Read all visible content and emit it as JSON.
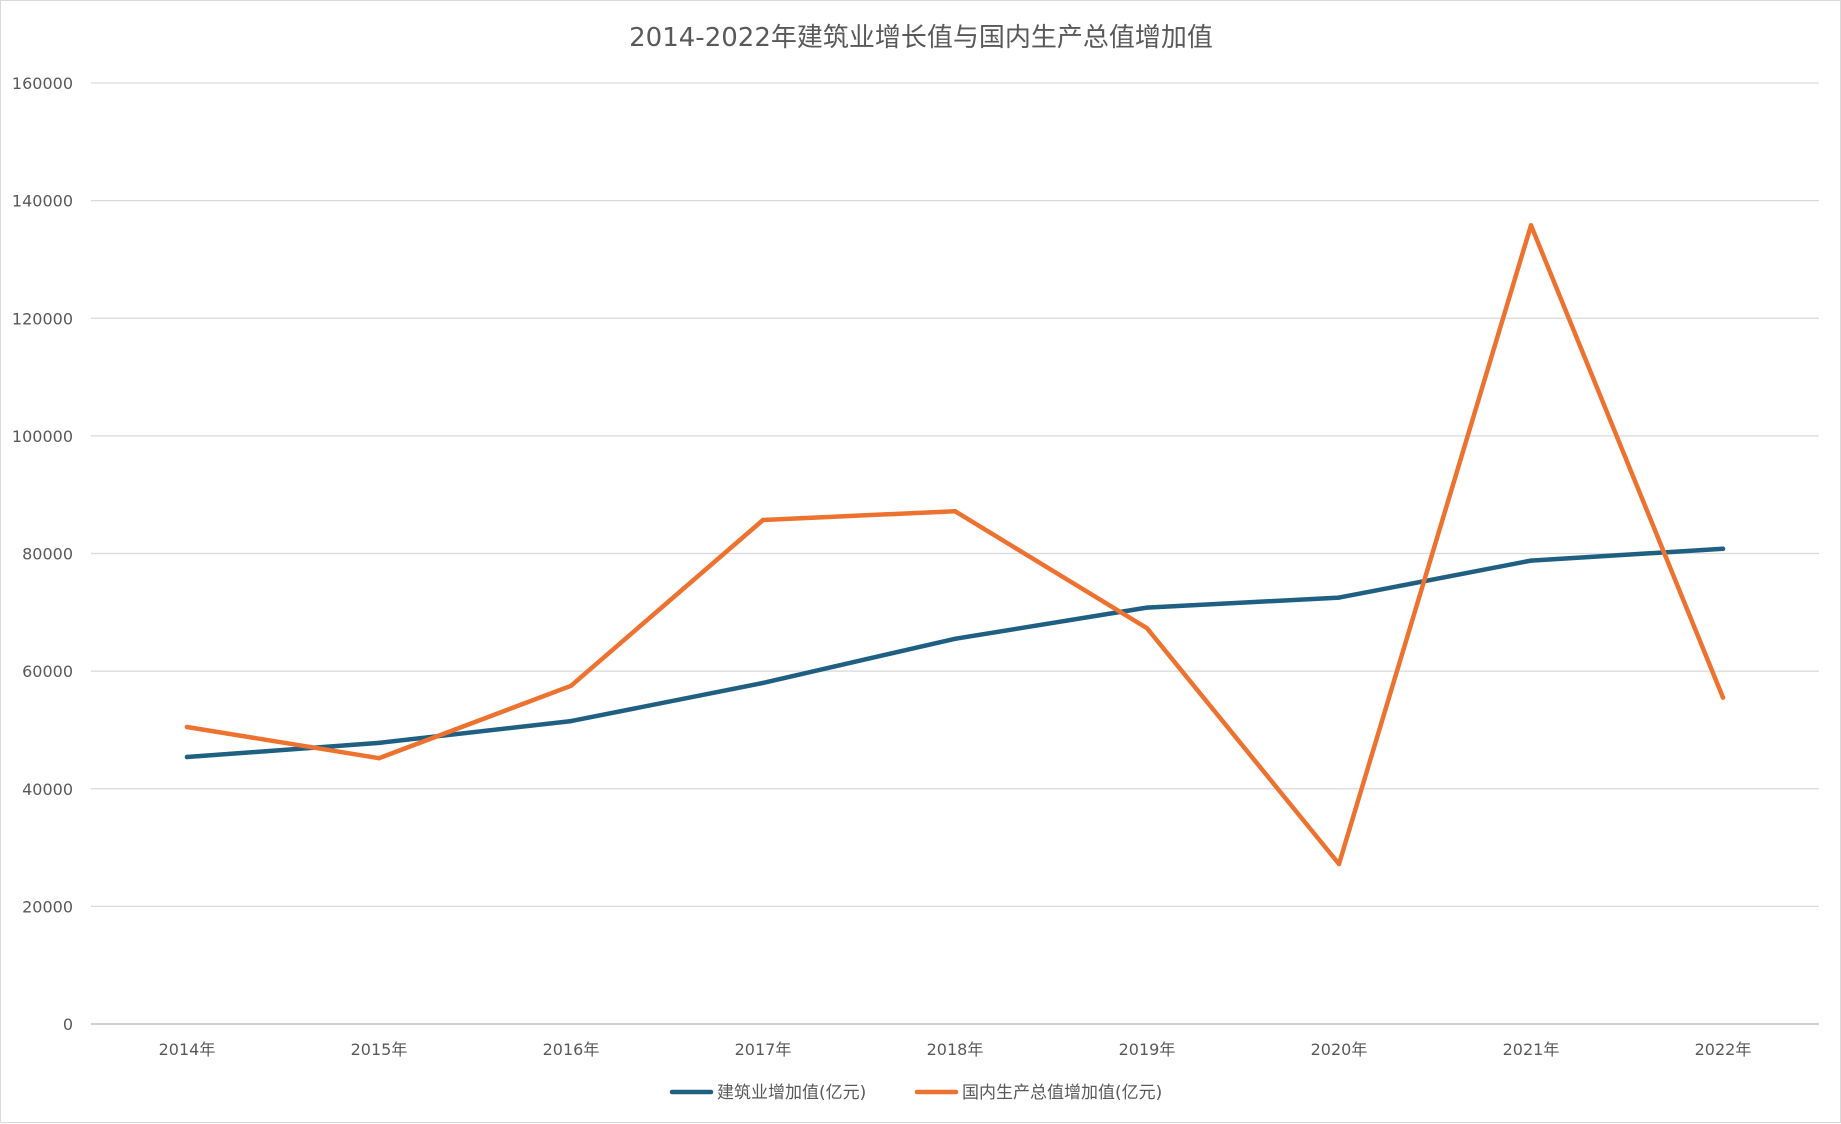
{
  "chart_data": {
    "type": "line",
    "title": "2014-2022年建筑业增长值与国内生产总值增加值",
    "categories": [
      "2014年",
      "2015年",
      "2016年",
      "2017年",
      "2018年",
      "2019年",
      "2020年",
      "2021年",
      "2022年"
    ],
    "ylim": [
      0,
      160000
    ],
    "yticks": [
      "0",
      "20000",
      "40000",
      "60000",
      "80000",
      "100000",
      "120000",
      "140000",
      "160000"
    ],
    "grid": true,
    "legend_position": "bottom",
    "series": [
      {
        "name": "建筑业增加值(亿元)",
        "color": "#1f5f82",
        "values": [
          45400,
          47800,
          51500,
          58000,
          65500,
          70800,
          72500,
          78800,
          80800
        ]
      },
      {
        "name": "国内生产总值增加值(亿元)",
        "color": "#ed7230",
        "values": [
          50500,
          45200,
          57500,
          85700,
          87200,
          67300,
          27200,
          135800,
          55500
        ]
      }
    ]
  }
}
